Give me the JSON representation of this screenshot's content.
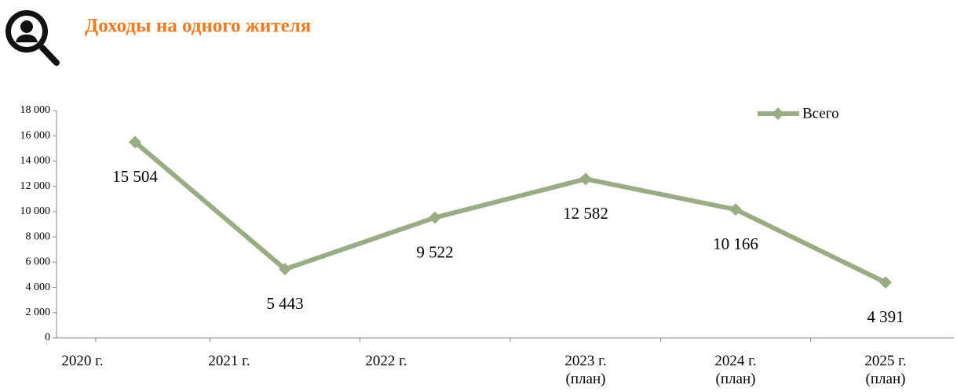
{
  "chart_data": {
    "type": "line",
    "title": "Доходы на одного жителя",
    "categories": [
      "2020 г.",
      "2021 г.",
      "2022 г.",
      "2023 г.\n(план)",
      "2024 г.\n(план)",
      "2025 г.\n(план)"
    ],
    "series": [
      {
        "name": "Всего",
        "color": "#9aac84",
        "values": [
          15504,
          5443,
          9522,
          12582,
          10166,
          4391
        ],
        "value_labels": [
          "15 504",
          "5 443",
          "9 522",
          "12 582",
          "10 166",
          "4 391"
        ]
      }
    ],
    "ylim": [
      0,
      18000
    ],
    "yticks": [
      0,
      {
        "value": 2000,
        "label": "2 000"
      },
      {
        "value": 4000,
        "label": "4 000"
      },
      {
        "value": 6000,
        "label": "6 000"
      },
      {
        "value": 8000,
        "label": "8 000"
      },
      {
        "value": 10000,
        "label": "10 000"
      },
      {
        "value": 12000,
        "label": "12 000"
      },
      {
        "value": 14000,
        "label": "14 000"
      },
      {
        "value": 16000,
        "label": "16 000"
      },
      {
        "value": 18000,
        "label": "18 000"
      }
    ],
    "legend": "top-right"
  }
}
